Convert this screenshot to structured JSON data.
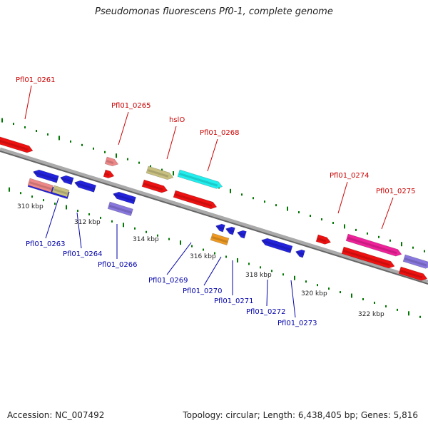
{
  "title": "Pseudomonas fluorescens Pf0-1, complete genome",
  "footer": {
    "accession": "Accession: NC_007492",
    "summary": "Topology: circular; Length: 6,438,405 bp; Genes: 5,816"
  },
  "colors": {
    "backbone": "#888888",
    "forward_label": "#cc0000",
    "reverse_label": "#0000aa",
    "tick": "#007700"
  },
  "ticks": [
    "310 kbp",
    "312 kbp",
    "314 kbp",
    "316 kbp",
    "318 kbp",
    "320 kbp",
    "322 kbp"
  ],
  "forward_labels": [
    "Pfl01_0261",
    "Pfl01_0265",
    "hslO",
    "Pfl01_0268",
    "Pfl01_0274",
    "Pfl01_0275"
  ],
  "reverse_labels": [
    "Pfl01_0263",
    "Pfl01_0264",
    "Pfl01_0266",
    "Pfl01_0269",
    "Pfl01_0270",
    "Pfl01_0271",
    "Pfl01_0272",
    "Pfl01_0273"
  ]
}
